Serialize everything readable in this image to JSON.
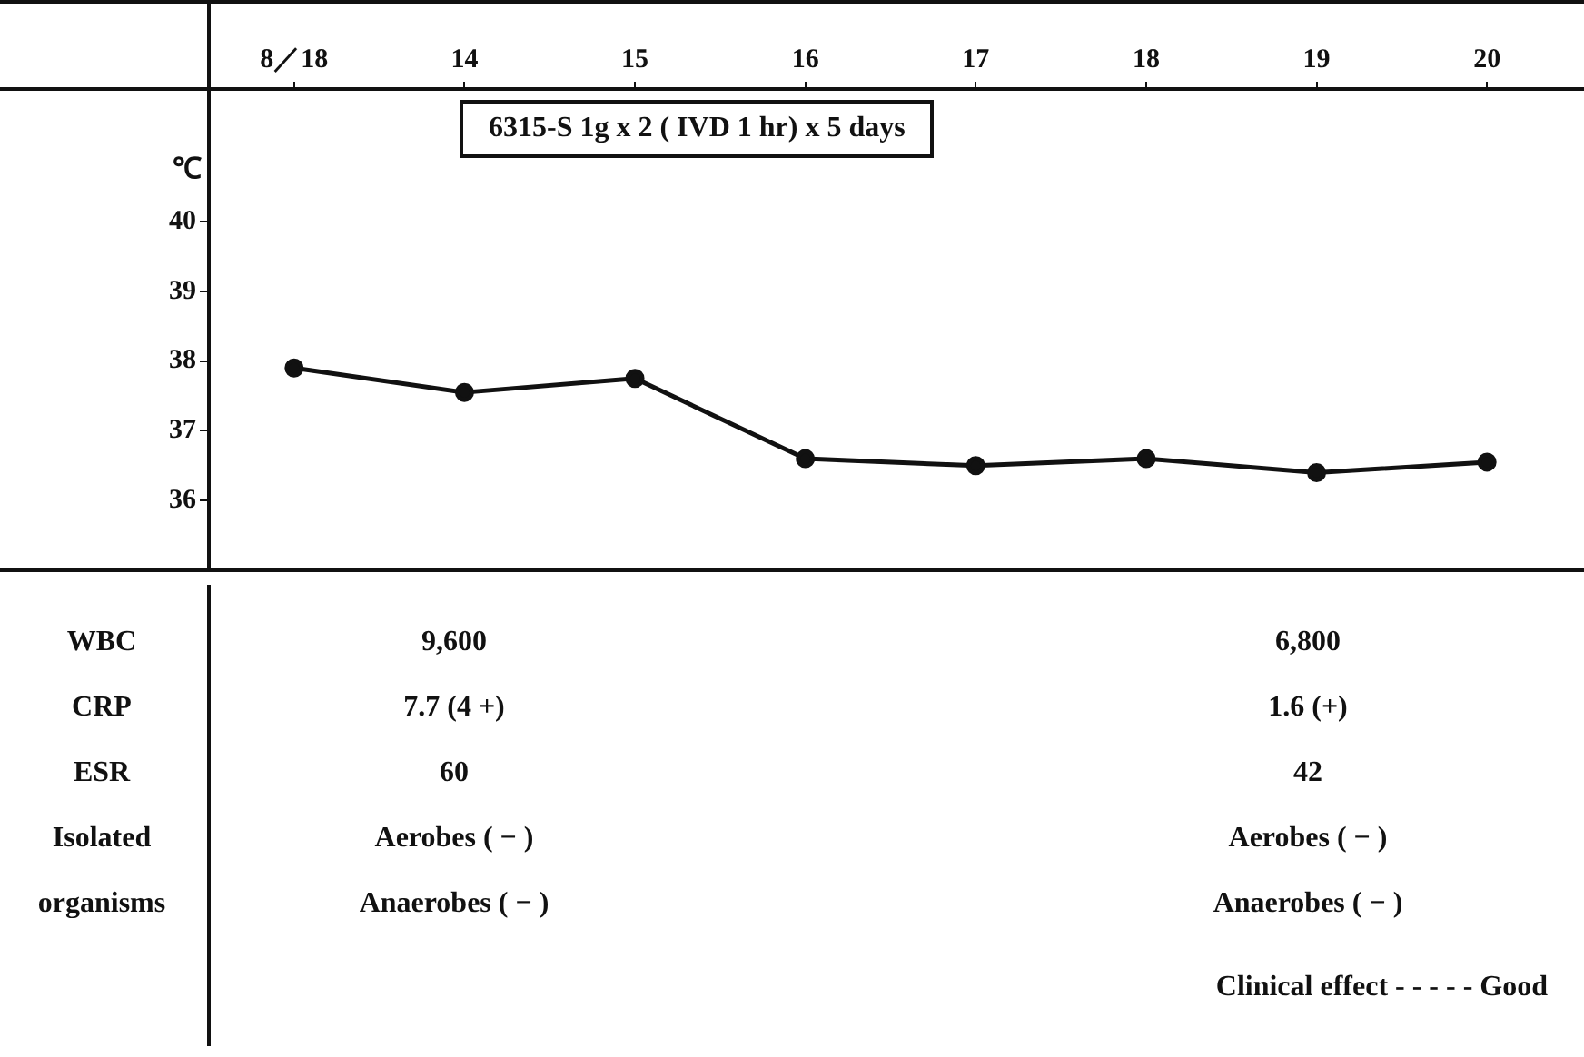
{
  "chart_data": {
    "type": "line",
    "ylabel": "℃",
    "categories": [
      "8／18",
      "14",
      "15",
      "16",
      "17",
      "18",
      "19",
      "20"
    ],
    "series": [
      {
        "color": "#111111",
        "values": [
          37.9,
          37.55,
          37.75,
          36.6,
          36.5,
          36.6,
          36.4,
          36.55
        ]
      }
    ],
    "ylim": [
      35,
      41.9
    ],
    "yticks": [
      36,
      37,
      38,
      39,
      40
    ],
    "grid": false,
    "legend": false,
    "marker": "circle",
    "line_style": "solid",
    "annotations": [
      "6315-S 1g x 2 ( IVD 1 hr) x 5 days",
      "WBC",
      "9,600",
      "6,800",
      "CRP",
      "7.7 (4 +)",
      "1.6 (+)",
      "ESR",
      "60",
      "42",
      "Isolated\norganisms",
      "Aerobes ( − )\nAnaerobes ( − )",
      "Aerobes ( − )\nAnaerobes ( − )",
      "Clinical effect - - - - - Good"
    ]
  }
}
